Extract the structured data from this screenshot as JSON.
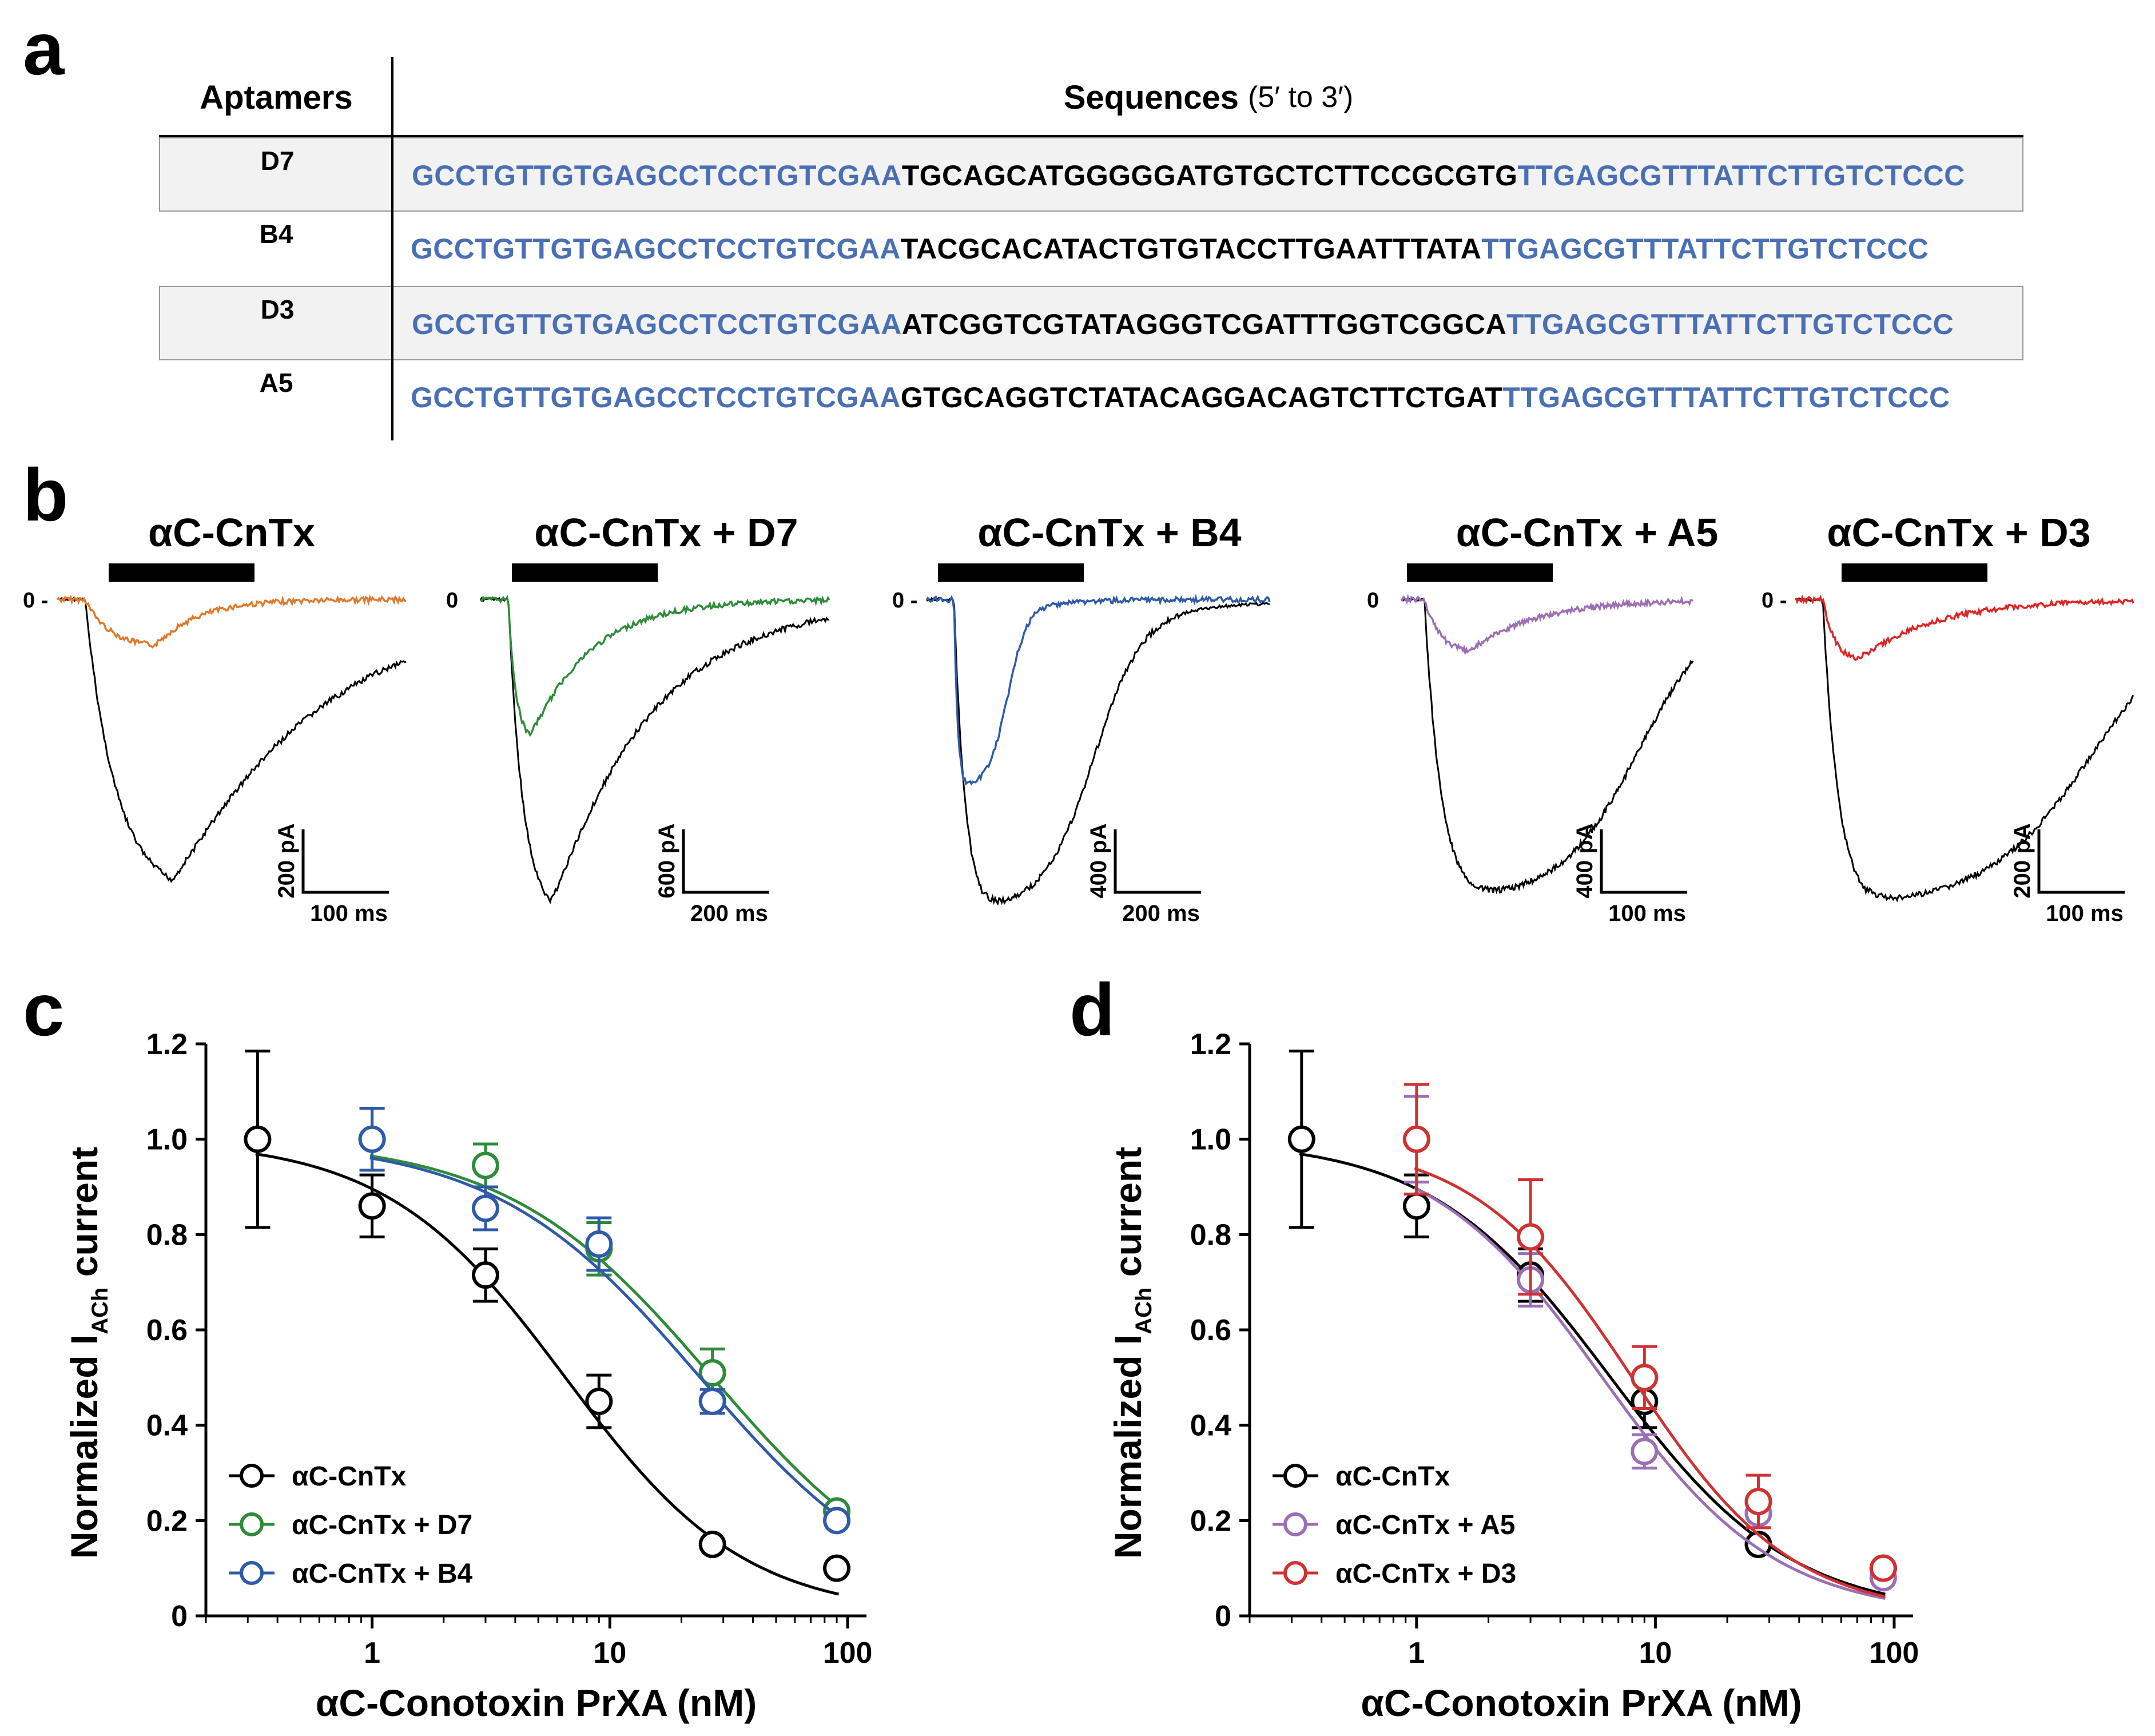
{
  "panels": {
    "a": "a",
    "b": "b",
    "c": "c",
    "d": "d"
  },
  "table": {
    "header_aptamers": "Aptamers",
    "header_sequences": "Sequences",
    "header_note": "(5′ to 3′)",
    "rows": [
      {
        "name": "D7",
        "p5": "GCCTGTTGTGAGCCTCCTGTCGAA",
        "mid": "TGCAGCATGGGGGATGTGCTCTTCCGCGTG",
        "p3": "TTGAGCGTTTATTCTTGTCTCCC"
      },
      {
        "name": "B4",
        "p5": "GCCTGTTGTGAGCCTCCTGTCGAA",
        "mid": "TACGCACATACTGTGTACCTTGAATTTATA",
        "p3": "TTGAGCGTTTATTCTTGTCTCCC"
      },
      {
        "name": "D3",
        "p5": "GCCTGTTGTGAGCCTCCTGTCGAA",
        "mid": "ATCGGTCGTATAGGGTCGATTTGGTCGGCA",
        "p3": "TTGAGCGTTTATTCTTGTCTCCC"
      },
      {
        "name": "A5",
        "p5": "GCCTGTTGTGAGCCTCCTGTCGAA",
        "mid": "GTGCAGGTCTATACAGGACAGTCTTCTGAT",
        "p3": "TTGAGCGTTTATTCTTGTCTCCC"
      }
    ]
  },
  "traces": [
    {
      "title": "αC-CnTx",
      "zero": "0 -",
      "scale_y": "200 pA",
      "scale_x": "100 ms",
      "color": "#e07a2c"
    },
    {
      "title": "αC-CnTx + D7",
      "zero": "0",
      "scale_y": "600 pA",
      "scale_x": "200 ms",
      "color": "#2e8b3a"
    },
    {
      "title": "αC-CnTx + B4",
      "zero": "0 -",
      "scale_y": "400 pA",
      "scale_x": "200 ms",
      "color": "#2f5aa8"
    },
    {
      "title": "αC-CnTx + A5",
      "zero": "0",
      "scale_y": "400 pA",
      "scale_x": "100 ms",
      "color": "#9b6fb5"
    },
    {
      "title": "αC-CnTx + D3",
      "zero": "0 -",
      "scale_y": "200 pA",
      "scale_x": "100 ms",
      "color": "#e02424"
    }
  ],
  "chart_data": [
    {
      "type": "scatter",
      "xlabel": "αC-Conotoxin PrXA (nM)",
      "ylabel_pre": "Normalized I",
      "ylabel_sub": "ACh",
      "ylabel_post": " current",
      "xscale": "log",
      "xlim": [
        0.2,
        120
      ],
      "ylim": [
        0,
        1.2
      ],
      "xticks": [
        "1",
        "10",
        "100"
      ],
      "yticks": [
        "0",
        "0.2",
        "0.4",
        "0.6",
        "0.8",
        "1.0",
        "1.2"
      ],
      "legend": "bottom-left",
      "series": [
        {
          "name": "αC-CnTx",
          "color": "#000000",
          "x": [
            0.33,
            1,
            3,
            9,
            27,
            90
          ],
          "y": [
            1.0,
            0.86,
            0.715,
            0.45,
            0.15,
            0.1
          ],
          "err": [
            0.185,
            0.065,
            0.055,
            0.055,
            0,
            0
          ],
          "ic50": 6.5,
          "hill": 1.15
        },
        {
          "name": "αC-CnTx + D7",
          "color": "#2e8b3a",
          "x": [
            1,
            3,
            9,
            27,
            90
          ],
          "y": [
            1.0,
            0.945,
            0.77,
            0.51,
            0.22
          ],
          "err": [
            0.065,
            0.045,
            0.055,
            0.05,
            0
          ],
          "ic50": 27,
          "hill": 1.0
        },
        {
          "name": "αC-CnTx + B4",
          "color": "#2f5aa8",
          "x": [
            1,
            3,
            9,
            27,
            90
          ],
          "y": [
            1.0,
            0.855,
            0.78,
            0.45,
            0.2
          ],
          "err": [
            0.065,
            0.045,
            0.055,
            0.025,
            0
          ],
          "ic50": 24,
          "hill": 1.0
        }
      ]
    },
    {
      "type": "scatter",
      "xlabel": "αC-Conotoxin PrXA (nM)",
      "ylabel_pre": "Normalized I",
      "ylabel_sub": "ACh",
      "ylabel_post": " current",
      "xscale": "log",
      "xlim": [
        0.2,
        120
      ],
      "ylim": [
        0,
        1.2
      ],
      "xticks": [
        "1",
        "10",
        "100"
      ],
      "yticks": [
        "0",
        "0.2",
        "0.4",
        "0.6",
        "0.8",
        "1.0",
        "1.2"
      ],
      "legend": "bottom-left",
      "series": [
        {
          "name": "αC-CnTx",
          "color": "#000000",
          "x": [
            0.33,
            1,
            3,
            9,
            27,
            90
          ],
          "y": [
            1.0,
            0.86,
            0.715,
            0.45,
            0.15,
            0.1
          ],
          "err": [
            0.185,
            0.065,
            0.055,
            0.055,
            0,
            0
          ],
          "ic50": 6.5,
          "hill": 1.15
        },
        {
          "name": "αC-CnTx + A5",
          "color": "#9b6fb5",
          "x": [
            1,
            3,
            9,
            27,
            90
          ],
          "y": [
            1.0,
            0.705,
            0.345,
            0.215,
            0.08
          ],
          "err": [
            0.09,
            0.055,
            0.035,
            0.03,
            0
          ],
          "ic50": 6.0,
          "hill": 1.2
        },
        {
          "name": "αC-CnTx + D3",
          "color": "#d03232",
          "x": [
            1,
            3,
            9,
            27,
            90
          ],
          "y": [
            1.0,
            0.795,
            0.5,
            0.24,
            0.1
          ],
          "err": [
            0.115,
            0.12,
            0.065,
            0.055,
            0
          ],
          "ic50": 8.0,
          "hill": 1.3
        }
      ]
    }
  ]
}
